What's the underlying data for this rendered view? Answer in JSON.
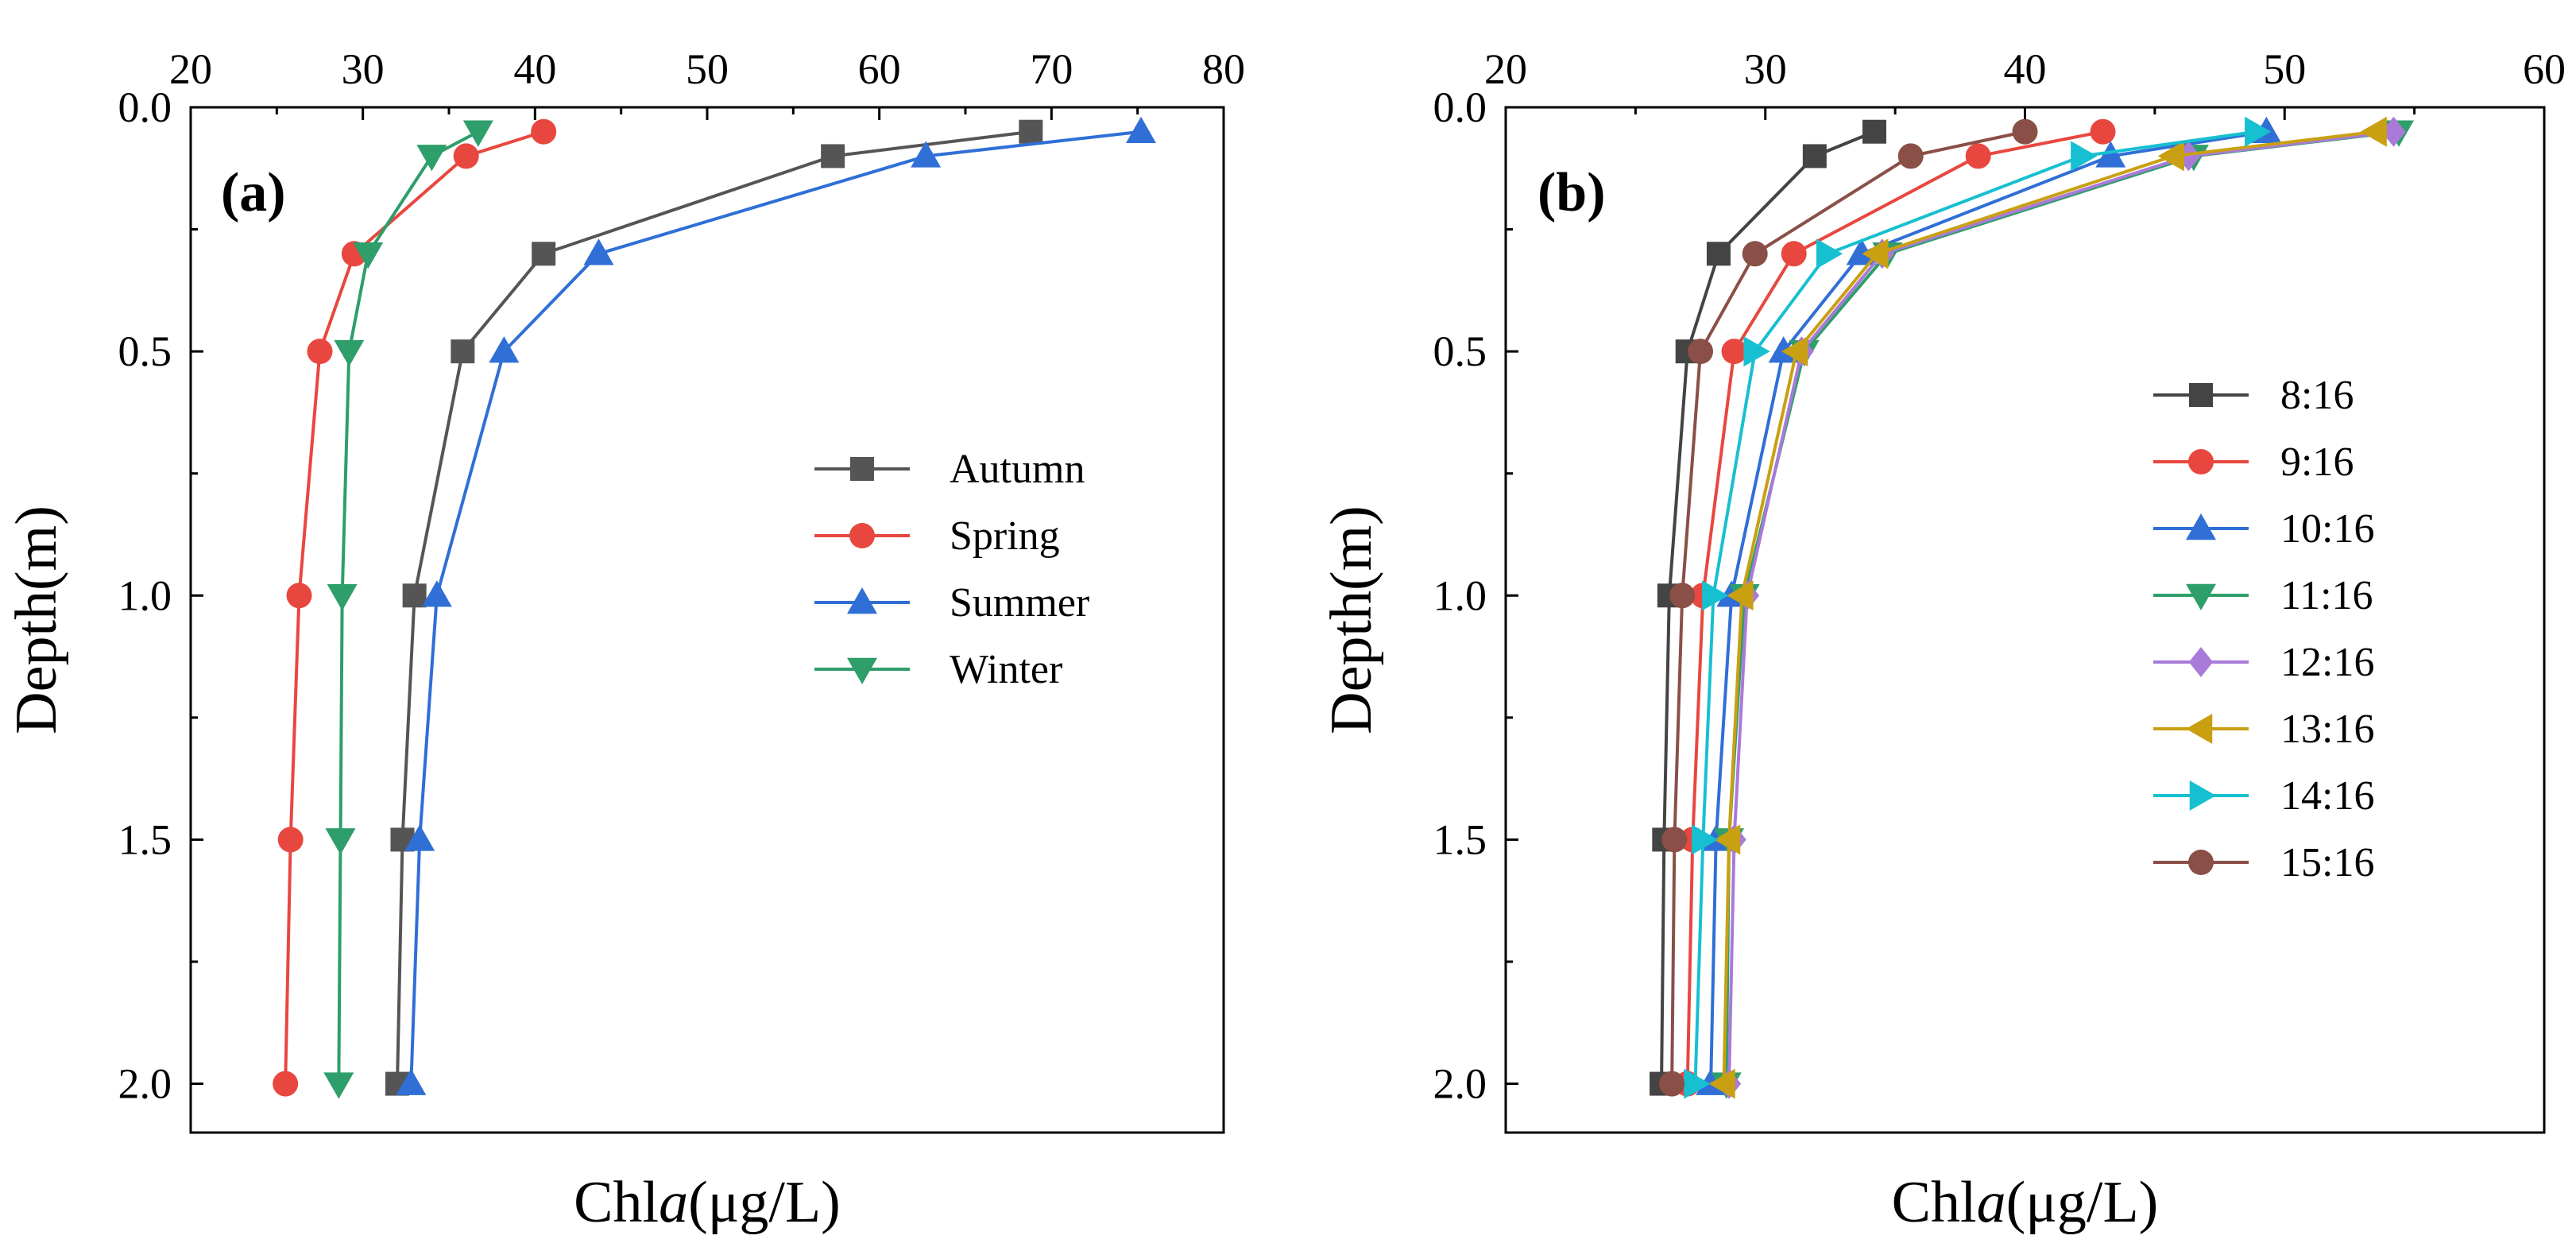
{
  "chart_data": [
    {
      "type": "line",
      "panel_label": "(a)",
      "xlabel_prefix": "Chl",
      "xlabel_italic": "a",
      "xlabel_suffix": "(μg/L)",
      "ylabel": "Depth(m)",
      "xlim": [
        20,
        80
      ],
      "ylim": [
        0,
        2.1
      ],
      "y_inverted": true,
      "x_axis_position": "top",
      "x_ticks": [
        "20",
        "30",
        "40",
        "50",
        "60",
        "70",
        "80"
      ],
      "x_tick_values": [
        20,
        30,
        40,
        50,
        60,
        70,
        80
      ],
      "y_ticks": [
        "0.0",
        "0.5",
        "1.0",
        "1.5",
        "2.0"
      ],
      "y_tick_values": [
        0,
        0.5,
        1.0,
        1.5,
        2.0
      ],
      "depths": [
        0.05,
        0.1,
        0.3,
        0.5,
        1.0,
        1.5,
        2.0
      ],
      "legend_position": "center-right",
      "series": [
        {
          "name": "Autumn",
          "marker": "square",
          "color": "#555555",
          "values": [
            68.8,
            57.3,
            40.5,
            35.8,
            33.0,
            32.3,
            32.0
          ]
        },
        {
          "name": "Spring",
          "marker": "circle",
          "color": "#e8473f",
          "values": [
            40.5,
            36.0,
            29.5,
            27.5,
            26.3,
            25.8,
            25.5
          ]
        },
        {
          "name": "Summer",
          "marker": "triangle-up",
          "color": "#2f6fd6",
          "values": [
            75.2,
            62.7,
            43.7,
            38.2,
            34.3,
            33.3,
            32.8
          ]
        },
        {
          "name": "Winter",
          "marker": "triangle-down",
          "color": "#2e9e6a",
          "values": [
            36.7,
            34.0,
            30.3,
            29.2,
            28.8,
            28.7,
            28.6
          ]
        }
      ]
    },
    {
      "type": "line",
      "panel_label": "(b)",
      "xlabel_prefix": "Chl",
      "xlabel_italic": "a",
      "xlabel_suffix": "(μg/L)",
      "ylabel": "Depth(m)",
      "xlim": [
        20,
        60
      ],
      "ylim": [
        0,
        2.1
      ],
      "y_inverted": true,
      "x_axis_position": "top",
      "x_ticks": [
        "20",
        "30",
        "40",
        "50",
        "60"
      ],
      "x_tick_values": [
        20,
        30,
        40,
        50,
        60
      ],
      "y_ticks": [
        "0.0",
        "0.5",
        "1.0",
        "1.5",
        "2.0"
      ],
      "y_tick_values": [
        0,
        0.5,
        1.0,
        1.5,
        2.0
      ],
      "depths": [
        0.05,
        0.1,
        0.3,
        0.5,
        1.0,
        1.5,
        2.0
      ],
      "legend_position": "center-right",
      "series": [
        {
          "name": "8:16",
          "marker": "square",
          "color": "#444444",
          "values": [
            34.2,
            31.9,
            28.2,
            27.0,
            26.3,
            26.1,
            26.0
          ]
        },
        {
          "name": "9:16",
          "marker": "circle",
          "color": "#e8473f",
          "values": [
            43.0,
            38.2,
            31.1,
            28.8,
            27.6,
            27.2,
            27.0
          ]
        },
        {
          "name": "10:16",
          "marker": "triangle-up",
          "color": "#2f6fd6",
          "values": [
            49.3,
            43.3,
            33.7,
            30.7,
            28.7,
            28.1,
            27.9
          ]
        },
        {
          "name": "11:16",
          "marker": "triangle-down",
          "color": "#2e9e6a",
          "values": [
            54.4,
            46.5,
            34.7,
            31.5,
            29.2,
            28.6,
            28.5
          ]
        },
        {
          "name": "12:16",
          "marker": "diamond",
          "color": "#a97ad8",
          "values": [
            54.2,
            46.3,
            34.5,
            31.4,
            29.3,
            28.8,
            28.6
          ]
        },
        {
          "name": "13:16",
          "marker": "triangle-left",
          "color": "#c9a012",
          "values": [
            53.5,
            45.7,
            34.3,
            31.2,
            29.1,
            28.6,
            28.4
          ]
        },
        {
          "name": "14:16",
          "marker": "triangle-right",
          "color": "#17c0d0",
          "values": [
            48.9,
            42.2,
            32.4,
            29.6,
            28.0,
            27.6,
            27.3
          ]
        },
        {
          "name": "15:16",
          "marker": "circle",
          "color": "#8a4f47",
          "values": [
            40.0,
            35.6,
            29.6,
            27.5,
            26.8,
            26.5,
            26.4
          ]
        }
      ]
    }
  ]
}
